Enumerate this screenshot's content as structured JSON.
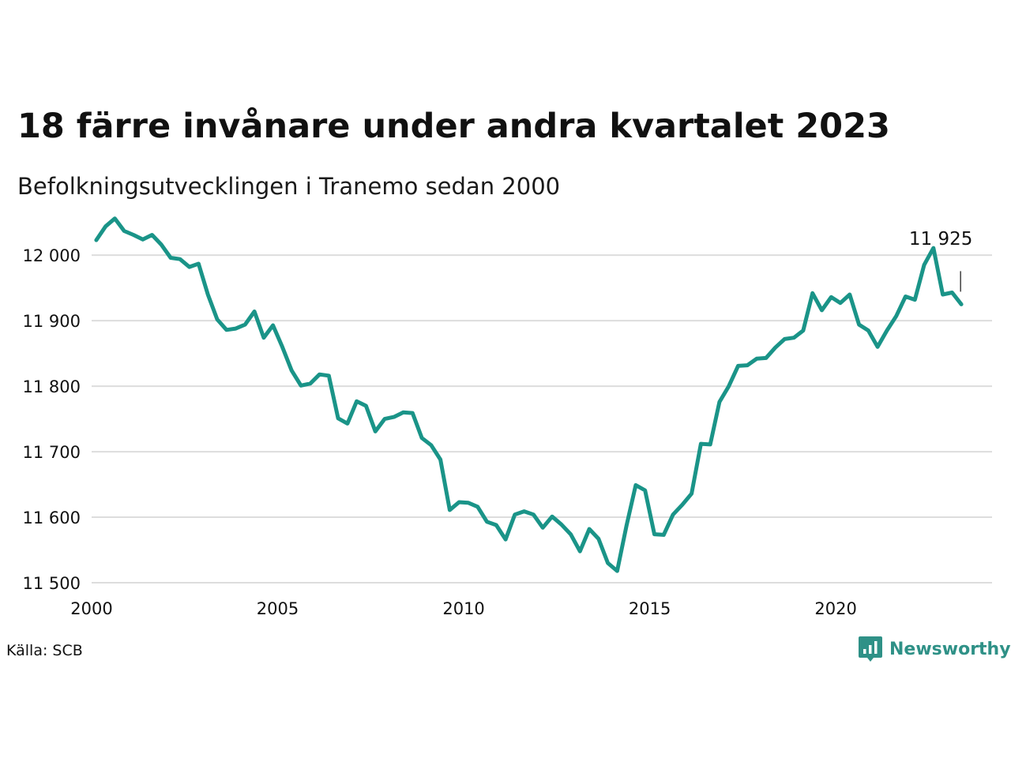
{
  "colors": {
    "line": "#1a9488",
    "grid": "#dddddd",
    "brand": "#2f9187"
  },
  "title": "18 färre invånare under andra kvartalet 2023",
  "subtitle": "Befolkningsutvecklingen i Tranemo sedan 2000",
  "source": "Källa: SCB",
  "brand": {
    "name": "Newsworthy",
    "icon": "newsworthy-logo-icon"
  },
  "chart_data": {
    "type": "line",
    "title": "18 färre invånare under andra kvartalet 2023",
    "subtitle": "Befolkningsutvecklingen i Tranemo sedan 2000",
    "xlabel": "",
    "ylabel": "",
    "xlim": [
      2000,
      2024.2
    ],
    "ylim": [
      11500,
      12040
    ],
    "y_ticks": [
      11500,
      11600,
      11700,
      11800,
      11900,
      12000
    ],
    "y_tick_labels": [
      "11 500",
      "11 600",
      "11 700",
      "11 800",
      "11 900",
      "12 000"
    ],
    "x_ticks": [
      2000,
      2005,
      2010,
      2015,
      2020
    ],
    "x_tick_labels": [
      "2000",
      "2005",
      "2010",
      "2015",
      "2020"
    ],
    "grid": true,
    "annotation": {
      "text": "11 925",
      "x": 2023.375,
      "y": 11925
    },
    "series": [
      {
        "values": [
          {
            "x": 2000.125,
            "y": 12023
          },
          {
            "x": 2000.375,
            "y": 12044
          },
          {
            "x": 2000.625,
            "y": 12056
          },
          {
            "x": 2000.875,
            "y": 12037
          },
          {
            "x": 2001.125,
            "y": 12031
          },
          {
            "x": 2001.375,
            "y": 12024
          },
          {
            "x": 2001.625,
            "y": 12031
          },
          {
            "x": 2001.875,
            "y": 12016
          },
          {
            "x": 2002.125,
            "y": 11996
          },
          {
            "x": 2002.375,
            "y": 11994
          },
          {
            "x": 2002.625,
            "y": 11982
          },
          {
            "x": 2002.875,
            "y": 11987
          },
          {
            "x": 2003.125,
            "y": 11940
          },
          {
            "x": 2003.375,
            "y": 11902
          },
          {
            "x": 2003.625,
            "y": 11886
          },
          {
            "x": 2003.875,
            "y": 11888
          },
          {
            "x": 2004.125,
            "y": 11894
          },
          {
            "x": 2004.375,
            "y": 11914
          },
          {
            "x": 2004.625,
            "y": 11874
          },
          {
            "x": 2004.875,
            "y": 11893
          },
          {
            "x": 2005.125,
            "y": 11860
          },
          {
            "x": 2005.375,
            "y": 11824
          },
          {
            "x": 2005.625,
            "y": 11801
          },
          {
            "x": 2005.875,
            "y": 11804
          },
          {
            "x": 2006.125,
            "y": 11818
          },
          {
            "x": 2006.375,
            "y": 11816
          },
          {
            "x": 2006.625,
            "y": 11751
          },
          {
            "x": 2006.875,
            "y": 11743
          },
          {
            "x": 2007.125,
            "y": 11777
          },
          {
            "x": 2007.375,
            "y": 11770
          },
          {
            "x": 2007.625,
            "y": 11731
          },
          {
            "x": 2007.875,
            "y": 11750
          },
          {
            "x": 2008.125,
            "y": 11753
          },
          {
            "x": 2008.375,
            "y": 11760
          },
          {
            "x": 2008.625,
            "y": 11759
          },
          {
            "x": 2008.875,
            "y": 11721
          },
          {
            "x": 2009.125,
            "y": 11710
          },
          {
            "x": 2009.375,
            "y": 11688
          },
          {
            "x": 2009.625,
            "y": 11611
          },
          {
            "x": 2009.875,
            "y": 11623
          },
          {
            "x": 2010.125,
            "y": 11622
          },
          {
            "x": 2010.375,
            "y": 11616
          },
          {
            "x": 2010.625,
            "y": 11593
          },
          {
            "x": 2010.875,
            "y": 11588
          },
          {
            "x": 2011.125,
            "y": 11566
          },
          {
            "x": 2011.375,
            "y": 11604
          },
          {
            "x": 2011.625,
            "y": 11609
          },
          {
            "x": 2011.875,
            "y": 11604
          },
          {
            "x": 2012.125,
            "y": 11584
          },
          {
            "x": 2012.375,
            "y": 11601
          },
          {
            "x": 2012.625,
            "y": 11589
          },
          {
            "x": 2012.875,
            "y": 11574
          },
          {
            "x": 2013.125,
            "y": 11548
          },
          {
            "x": 2013.375,
            "y": 11582
          },
          {
            "x": 2013.625,
            "y": 11567
          },
          {
            "x": 2013.875,
            "y": 11530
          },
          {
            "x": 2014.125,
            "y": 11518
          },
          {
            "x": 2014.375,
            "y": 11587
          },
          {
            "x": 2014.625,
            "y": 11649
          },
          {
            "x": 2014.875,
            "y": 11641
          },
          {
            "x": 2015.125,
            "y": 11574
          },
          {
            "x": 2015.375,
            "y": 11573
          },
          {
            "x": 2015.625,
            "y": 11604
          },
          {
            "x": 2015.875,
            "y": 11619
          },
          {
            "x": 2016.125,
            "y": 11636
          },
          {
            "x": 2016.375,
            "y": 11712
          },
          {
            "x": 2016.625,
            "y": 11711
          },
          {
            "x": 2016.875,
            "y": 11776
          },
          {
            "x": 2017.125,
            "y": 11800
          },
          {
            "x": 2017.375,
            "y": 11831
          },
          {
            "x": 2017.625,
            "y": 11832
          },
          {
            "x": 2017.875,
            "y": 11842
          },
          {
            "x": 2018.125,
            "y": 11843
          },
          {
            "x": 2018.375,
            "y": 11859
          },
          {
            "x": 2018.625,
            "y": 11872
          },
          {
            "x": 2018.875,
            "y": 11874
          },
          {
            "x": 2019.125,
            "y": 11885
          },
          {
            "x": 2019.375,
            "y": 11942
          },
          {
            "x": 2019.625,
            "y": 11916
          },
          {
            "x": 2019.875,
            "y": 11936
          },
          {
            "x": 2020.125,
            "y": 11927
          },
          {
            "x": 2020.375,
            "y": 11940
          },
          {
            "x": 2020.625,
            "y": 11894
          },
          {
            "x": 2020.875,
            "y": 11885
          },
          {
            "x": 2021.125,
            "y": 11860
          },
          {
            "x": 2021.375,
            "y": 11885
          },
          {
            "x": 2021.625,
            "y": 11907
          },
          {
            "x": 2021.875,
            "y": 11937
          },
          {
            "x": 2022.125,
            "y": 11932
          },
          {
            "x": 2022.375,
            "y": 11985
          },
          {
            "x": 2022.625,
            "y": 12011
          },
          {
            "x": 2022.875,
            "y": 11940
          },
          {
            "x": 2023.125,
            "y": 11943
          },
          {
            "x": 2023.375,
            "y": 11925
          }
        ]
      }
    ]
  }
}
